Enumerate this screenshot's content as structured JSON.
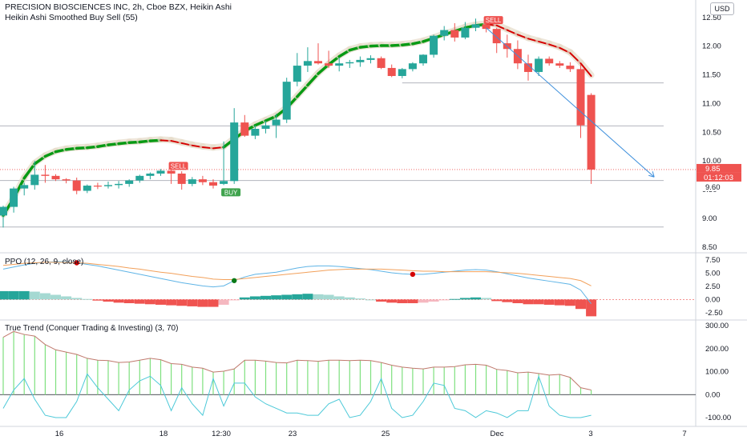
{
  "header": {
    "title": "PRECISION BIOSCIENCES INC, 2h, Cboe BZX, Heikin Ashi",
    "indicator": "Heikin Ashi Smoothed Buy Sell",
    "indicator_param": "(55)",
    "currency": "USD"
  },
  "colors": {
    "up": "#26a69a",
    "down": "#ef5350",
    "ma_up": "#089a14",
    "ma_down": "#d40000",
    "ppo_line": "#5fb4e6",
    "ppo_signal": "#f2a05a",
    "trend_bar": "#7ee07e",
    "trend_line": "#c0796d",
    "trend_osc": "#4cc9d8",
    "trendline": "#3d8fdc"
  },
  "chart_data": [
    {
      "type": "candlestick",
      "title": "PRECISION BIOSCIENCES INC, 2h, Cboe BZX, Heikin Ashi",
      "ylim": [
        8.4,
        12.72
      ],
      "y_ticks": [
        "12.50",
        "12.00",
        "11.50",
        "11.00",
        "10.50",
        "10.00",
        "9.50",
        "9.00",
        "8.50"
      ],
      "x_ticks": [
        "16",
        "18",
        "12:30",
        "23",
        "25",
        "Dec",
        "3",
        "7"
      ],
      "price_labels": {
        "last": "9.85",
        "countdown": "01:12:03",
        "low": "9.60"
      },
      "signals": [
        {
          "label": "SELL",
          "type": "sell",
          "bar": 16
        },
        {
          "label": "BUY",
          "type": "buy",
          "bar": 21
        },
        {
          "label": "SELL",
          "type": "sell",
          "bar": 46
        }
      ],
      "horizontal_levels": [
        8.85,
        9.66,
        10.61,
        11.36
      ],
      "candles": [
        [
          9.05,
          9.22,
          8.84,
          9.2
        ],
        [
          9.2,
          9.55,
          9.1,
          9.52
        ],
        [
          9.52,
          9.62,
          9.4,
          9.58
        ],
        [
          9.58,
          10.0,
          9.5,
          9.76
        ],
        [
          9.76,
          9.93,
          9.62,
          9.74
        ],
        [
          9.74,
          9.77,
          9.65,
          9.68
        ],
        [
          9.68,
          9.7,
          9.61,
          9.66
        ],
        [
          9.66,
          9.71,
          9.42,
          9.48
        ],
        [
          9.48,
          9.59,
          9.44,
          9.57
        ],
        [
          9.57,
          9.62,
          9.51,
          9.56
        ],
        [
          9.56,
          9.64,
          9.52,
          9.58
        ],
        [
          9.58,
          9.65,
          9.52,
          9.6
        ],
        [
          9.6,
          9.68,
          9.55,
          9.66
        ],
        [
          9.66,
          9.76,
          9.62,
          9.74
        ],
        [
          9.74,
          9.8,
          9.68,
          9.78
        ],
        [
          9.78,
          9.86,
          9.74,
          9.83
        ],
        [
          9.83,
          9.9,
          9.6,
          9.78
        ],
        [
          9.78,
          9.82,
          9.5,
          9.6
        ],
        [
          9.6,
          9.72,
          9.56,
          9.68
        ],
        [
          9.68,
          9.74,
          9.58,
          9.63
        ],
        [
          9.63,
          9.68,
          9.52,
          9.57
        ],
        [
          9.6,
          10.34,
          9.58,
          9.65
        ],
        [
          9.65,
          10.92,
          9.6,
          10.67
        ],
        [
          10.67,
          10.8,
          10.42,
          10.44
        ],
        [
          10.44,
          10.62,
          10.38,
          10.56
        ],
        [
          10.56,
          10.7,
          10.48,
          10.62
        ],
        [
          10.62,
          10.82,
          10.4,
          10.72
        ],
        [
          10.72,
          11.45,
          10.66,
          11.38
        ],
        [
          11.38,
          11.88,
          11.3,
          11.66
        ],
        [
          11.66,
          11.98,
          11.55,
          11.74
        ],
        [
          11.74,
          12.05,
          11.68,
          11.7
        ],
        [
          11.7,
          11.92,
          11.62,
          11.66
        ],
        [
          11.66,
          11.8,
          11.56,
          11.7
        ],
        [
          11.7,
          11.76,
          11.62,
          11.72
        ],
        [
          11.72,
          11.82,
          11.64,
          11.76
        ],
        [
          11.76,
          11.84,
          11.7,
          11.79
        ],
        [
          11.79,
          11.82,
          11.6,
          11.62
        ],
        [
          11.62,
          11.68,
          11.46,
          11.48
        ],
        [
          11.48,
          11.62,
          11.44,
          11.6
        ],
        [
          11.6,
          11.72,
          11.56,
          11.7
        ],
        [
          11.7,
          11.86,
          11.66,
          11.85
        ],
        [
          11.85,
          12.2,
          11.8,
          12.18
        ],
        [
          12.18,
          12.35,
          12.1,
          12.28
        ],
        [
          12.28,
          12.4,
          12.08,
          12.15
        ],
        [
          12.15,
          12.42,
          12.12,
          12.32
        ],
        [
          12.32,
          12.48,
          12.26,
          12.38
        ],
        [
          12.38,
          12.44,
          12.24,
          12.3
        ],
        [
          12.3,
          12.32,
          11.88,
          12.05
        ],
        [
          12.05,
          12.2,
          11.8,
          11.95
        ],
        [
          11.95,
          12.1,
          11.6,
          11.7
        ],
        [
          11.7,
          11.85,
          11.4,
          11.55
        ],
        [
          11.55,
          11.82,
          11.48,
          11.78
        ],
        [
          11.78,
          11.82,
          11.66,
          11.7
        ],
        [
          11.7,
          11.74,
          11.62,
          11.66
        ],
        [
          11.66,
          11.72,
          11.55,
          11.6
        ],
        [
          11.6,
          11.68,
          10.4,
          10.62
        ],
        [
          11.15,
          11.18,
          9.6,
          9.85
        ]
      ],
      "smoothed_ma": [
        9.05,
        9.35,
        9.7,
        9.95,
        10.08,
        10.16,
        10.2,
        10.22,
        10.23,
        10.25,
        10.28,
        10.3,
        10.32,
        10.33,
        10.35,
        10.36,
        10.35,
        10.31,
        10.27,
        10.24,
        10.22,
        10.24,
        10.38,
        10.52,
        10.62,
        10.7,
        10.78,
        10.92,
        11.12,
        11.32,
        11.52,
        11.68,
        11.82,
        11.93,
        11.98,
        12.0,
        12.01,
        12.01,
        12.02,
        12.04,
        12.08,
        12.14,
        12.2,
        12.26,
        12.32,
        12.36,
        12.38,
        12.36,
        12.28,
        12.2,
        12.13,
        12.08,
        12.03,
        11.97,
        11.88,
        11.7,
        11.48
      ],
      "ma_turns": [
        {
          "from": 15,
          "to": 21,
          "dir": "down"
        },
        {
          "from": 46,
          "to": 56,
          "dir": "down"
        }
      ],
      "trendline": {
        "from": {
          "bar": 46,
          "price": 12.32
        },
        "to": {
          "bar": 62,
          "price": 9.72
        }
      }
    },
    {
      "type": "line",
      "title": "PPO (12, 26, 9, close)",
      "ylim": [
        -3.6,
        8.6
      ],
      "y_ticks": [
        "7.50",
        "5.00",
        "2.50",
        "0.00",
        "-2.50"
      ],
      "series": [
        {
          "values": [
            5.8,
            6.2,
            6.6,
            6.9,
            7.1,
            7.2,
            7.2,
            7.0,
            6.7,
            6.4,
            6.0,
            5.6,
            5.2,
            4.8,
            4.4,
            4.0,
            3.6,
            3.2,
            2.9,
            2.6,
            2.4,
            2.6,
            3.6,
            4.3,
            4.8,
            5.0,
            5.2,
            5.6,
            6.0,
            6.3,
            6.4,
            6.4,
            6.3,
            6.1,
            5.9,
            5.7,
            5.4,
            5.1,
            4.9,
            4.8,
            4.8,
            5.0,
            5.2,
            5.4,
            5.6,
            5.7,
            5.6,
            5.3,
            4.9,
            4.5,
            4.1,
            3.8,
            3.5,
            3.2,
            2.9,
            1.8,
            -0.8
          ]
        },
        {
          "values": [
            6.5,
            6.7,
            6.9,
            7.0,
            7.1,
            7.1,
            7.1,
            7.0,
            6.9,
            6.7,
            6.5,
            6.3,
            6.0,
            5.8,
            5.5,
            5.2,
            5.0,
            4.7,
            4.4,
            4.2,
            3.9,
            3.8,
            3.8,
            4.0,
            4.2,
            4.4,
            4.6,
            4.8,
            5.0,
            5.2,
            5.4,
            5.6,
            5.7,
            5.8,
            5.8,
            5.8,
            5.8,
            5.7,
            5.6,
            5.5,
            5.4,
            5.4,
            5.3,
            5.3,
            5.3,
            5.3,
            5.3,
            5.2,
            5.1,
            5.0,
            4.8,
            4.6,
            4.4,
            4.2,
            4.0,
            3.6,
            2.6
          ]
        }
      ],
      "histogram": [
        1.6,
        1.6,
        1.6,
        1.5,
        1.2,
        0.9,
        0.6,
        0.3,
        0.1,
        -0.2,
        -0.4,
        -0.6,
        -0.7,
        -0.8,
        -0.9,
        -1.0,
        -1.1,
        -1.2,
        -1.3,
        -1.4,
        -1.4,
        -1.0,
        -0.1,
        0.4,
        0.6,
        0.7,
        0.8,
        0.9,
        1.0,
        1.1,
        1.0,
        0.9,
        0.6,
        0.4,
        0.2,
        0.0,
        -0.4,
        -0.6,
        -0.7,
        -0.7,
        -0.6,
        -0.4,
        -0.1,
        0.1,
        0.3,
        0.4,
        0.3,
        -0.3,
        -0.5,
        -0.7,
        -0.9,
        -0.9,
        -1.0,
        -1.1,
        -1.2,
        -1.8,
        -3.2
      ],
      "cross_markers": [
        {
          "bar": 7,
          "type": "bearish"
        },
        {
          "bar": 22,
          "type": "bullish"
        },
        {
          "bar": 39,
          "type": "bearish"
        }
      ]
    },
    {
      "type": "bar",
      "title": "True Trend (Conquer Trading & Investing) (3, 70)",
      "ylim": [
        -135,
        318
      ],
      "y_ticks": [
        "300.00",
        "200.00",
        "100.00",
        "0.00",
        "-100.00"
      ],
      "x_ticks": [
        "16",
        "18",
        "12:30",
        "23",
        "25",
        "Dec",
        "3",
        "7"
      ],
      "trend": [
        250,
        275,
        262,
        255,
        218,
        195,
        185,
        175,
        158,
        150,
        148,
        140,
        142,
        150,
        158,
        152,
        135,
        132,
        120,
        115,
        98,
        102,
        112,
        150,
        150,
        146,
        140,
        138,
        150,
        148,
        145,
        150,
        150,
        148,
        150,
        148,
        140,
        128,
        120,
        115,
        112,
        120,
        120,
        122,
        130,
        132,
        128,
        110,
        105,
        95,
        98,
        92,
        85,
        88,
        75,
        30,
        20
      ],
      "oscillator": [
        -60,
        20,
        70,
        -20,
        -90,
        -100,
        -100,
        -30,
        90,
        30,
        -20,
        -70,
        20,
        60,
        80,
        40,
        -70,
        30,
        -40,
        -90,
        70,
        -50,
        50,
        50,
        -10,
        -40,
        -60,
        -80,
        -80,
        -90,
        -90,
        -40,
        -20,
        -100,
        -90,
        -30,
        70,
        -60,
        -100,
        -90,
        -30,
        50,
        40,
        -60,
        -70,
        -100,
        -70,
        -80,
        -100,
        -70,
        -70,
        80,
        -50,
        -90,
        -100,
        -100,
        -90
      ]
    }
  ]
}
